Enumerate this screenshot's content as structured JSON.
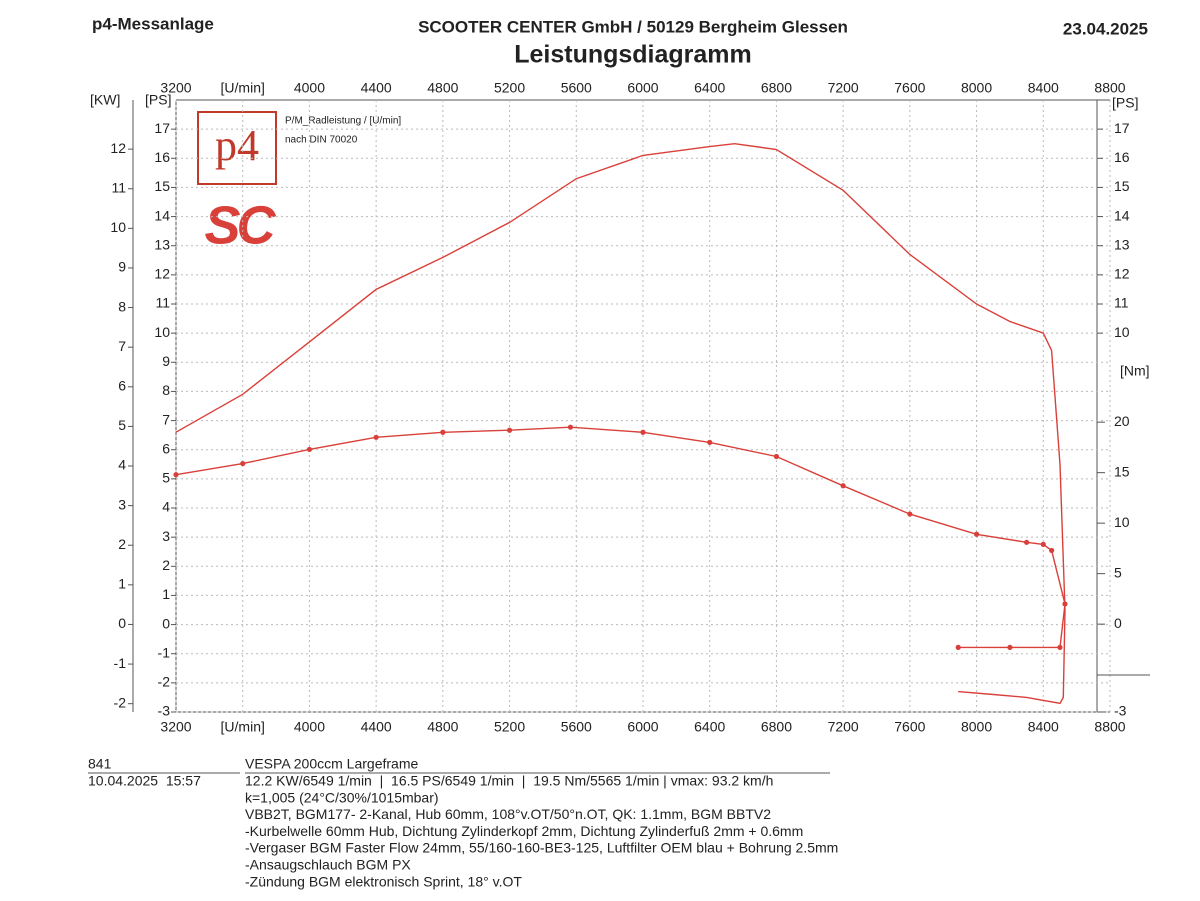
{
  "header": {
    "left": "p4-Messanlage",
    "center": "SCOOTER CENTER GmbH / 50129 Bergheim Glessen",
    "date": "23.04.2025",
    "title": "Leistungsdiagramm"
  },
  "chart_data": {
    "type": "line",
    "y_label": "[PS]",
    "kw_label": "[KW]",
    "y_right_label": "[PS]",
    "y2_label": "[Nm]",
    "legend": [
      "P/M_Radleistung / [U/min]",
      "nach DIN 70020"
    ],
    "logo": [
      "p4",
      "SC"
    ],
    "xlim": [
      3200,
      8800
    ],
    "xticks": [
      3200,
      {
        "value": 3600,
        "label": "[U/min]"
      },
      4000,
      4400,
      4800,
      5200,
      5600,
      6000,
      6400,
      6800,
      7200,
      7600,
      8000,
      8400,
      8800
    ],
    "ylim": [
      -3,
      18
    ],
    "yticks": [
      -3,
      -2,
      -1,
      0,
      1,
      2,
      3,
      4,
      5,
      6,
      7,
      8,
      9,
      10,
      11,
      12,
      13,
      14,
      15,
      16,
      17
    ],
    "y_right_ticks": [
      -3,
      10,
      11,
      12,
      13,
      14,
      15,
      16,
      17
    ],
    "kw_lim": [
      -2.21,
      13.24
    ],
    "kw_ticks": [
      -2,
      -1,
      0,
      1,
      2,
      3,
      4,
      5,
      6,
      7,
      8,
      9,
      10,
      11,
      12
    ],
    "y2lim": [
      -8.7,
      51.9
    ],
    "y2ticks": [
      0,
      5,
      10,
      15,
      20
    ],
    "grid": true,
    "series": [
      {
        "color": "#d9403a",
        "axis": "y",
        "markers": false,
        "x": [
          3200,
          3600,
          4000,
          4400,
          4800,
          5200,
          5600,
          6000,
          6400,
          6549,
          6800,
          7200,
          7600,
          8000,
          8200,
          8400,
          8450,
          8500,
          8530,
          8520,
          8500,
          8300,
          8100,
          7890
        ],
        "values": [
          6.6,
          7.9,
          9.7,
          11.5,
          12.6,
          13.8,
          15.3,
          16.1,
          16.4,
          16.5,
          16.3,
          14.9,
          12.7,
          11.0,
          10.4,
          10.0,
          9.4,
          5.5,
          0.5,
          -2.5,
          -2.7,
          -2.5,
          -2.4,
          -2.3
        ]
      },
      {
        "color": "#d9403a",
        "axis": "y2",
        "markers": true,
        "x": [
          3200,
          3600,
          4000,
          4400,
          4800,
          5200,
          5565,
          6000,
          6400,
          6800,
          7200,
          7600,
          8000,
          8300,
          8400,
          8450,
          8530,
          8500,
          8200,
          7890
        ],
        "values": [
          14.8,
          15.9,
          17.3,
          18.5,
          19.0,
          19.2,
          19.5,
          19.0,
          18.0,
          16.6,
          13.7,
          10.9,
          8.9,
          8.1,
          7.9,
          7.3,
          2.0,
          -2.3,
          -2.3,
          -2.3
        ]
      }
    ]
  },
  "footer": {
    "id": "841",
    "datetime": "10.04.2025  15:57",
    "lines": [
      "VESPA 200ccm Largeframe",
      "12.2 KW/6549 1/min  |  16.5 PS/6549 1/min  |  19.5 Nm/5565 1/min | vmax: 93.2 km/h",
      "k=1,005 (24°C/30%/1015mbar)",
      "VBB2T, BGM177- 2-Kanal, Hub 60mm, 108°v.OT/50°n.OT, QK: 1.1mm, BGM BBTV2",
      "-Kurbelwelle 60mm Hub, Dichtung Zylinderkopf 2mm, Dichtung Zylinderfuß 2mm + 0.6mm",
      "-Vergaser BGM Faster Flow 24mm, 55/160-160-BE3-125, Luftfilter OEM blau + Bohrung 2.5mm",
      "-Ansaugschlauch BGM PX",
      "-Zündung BGM elektronisch Sprint, 18° v.OT"
    ]
  }
}
